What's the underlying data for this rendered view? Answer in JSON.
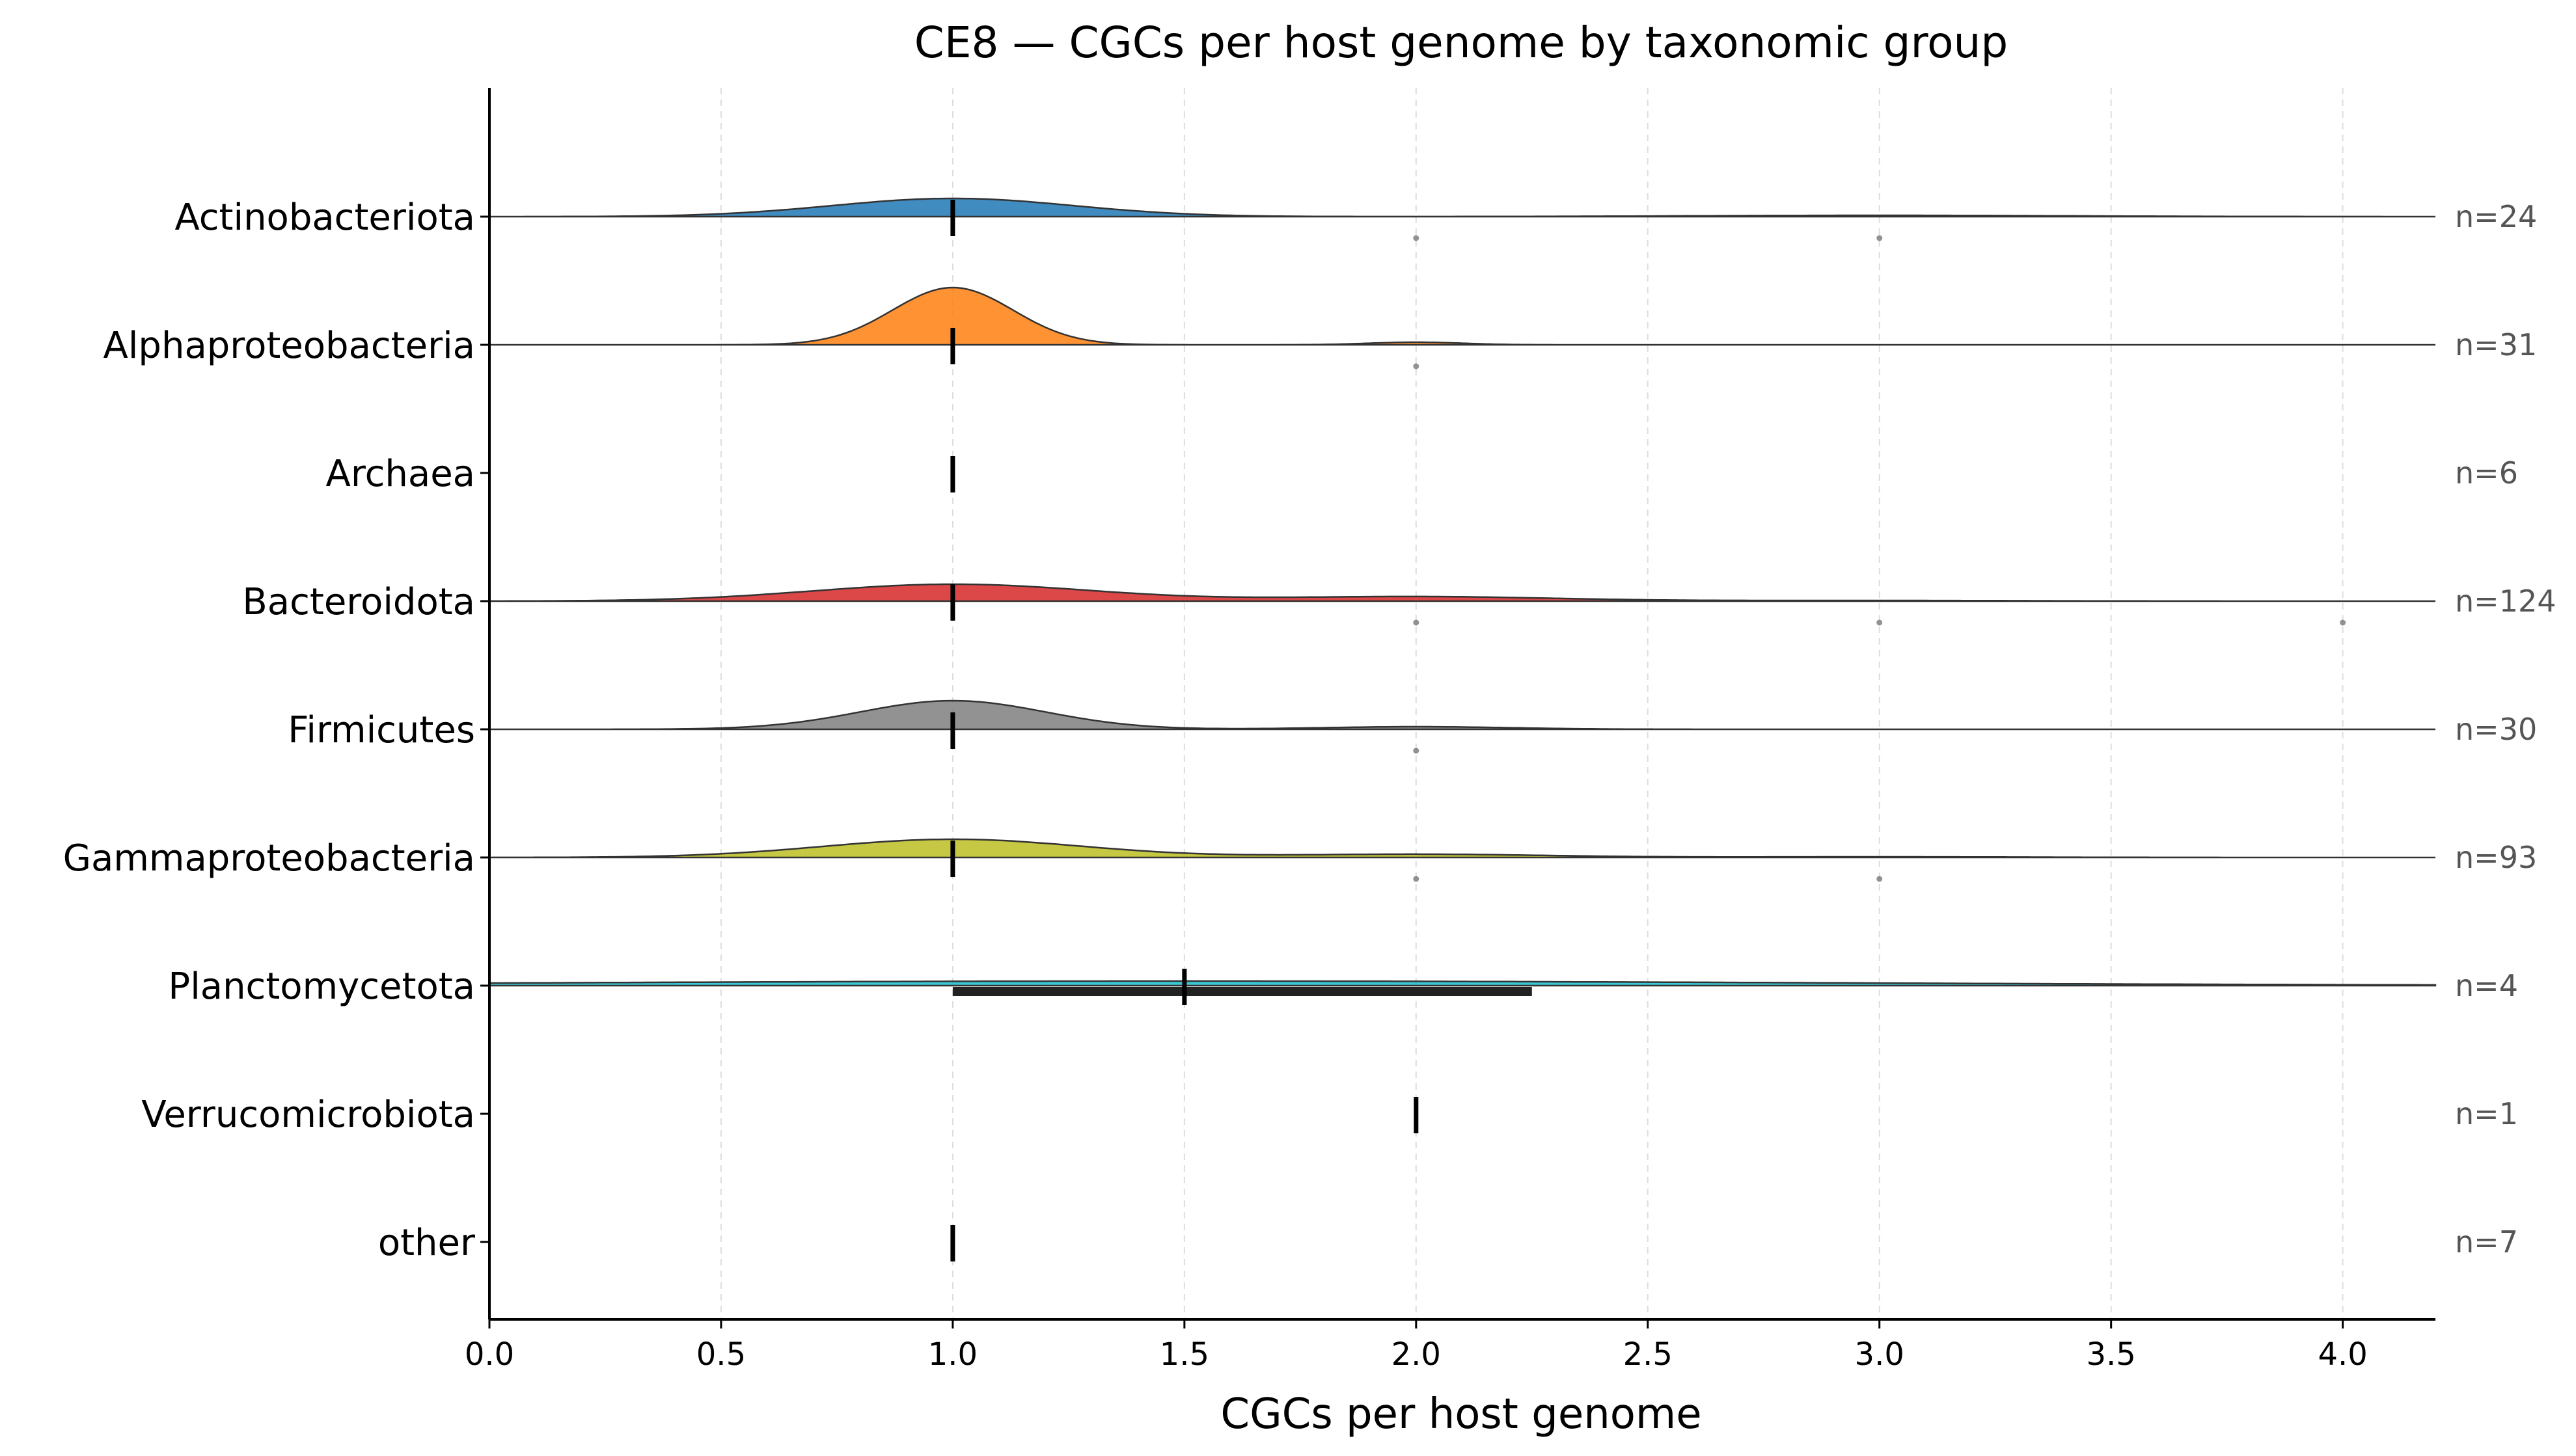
{
  "chart_data": {
    "type": "ridgeline",
    "title": "CE8 — CGCs per host genome by taxonomic group",
    "xlabel": "CGCs per host genome",
    "xlim": [
      0.0,
      4.2
    ],
    "xticks": [
      "0.0",
      "0.5",
      "1.0",
      "1.5",
      "2.0",
      "2.5",
      "3.0",
      "3.5",
      "4.0"
    ],
    "grid": "vertical dashed",
    "groups": [
      {
        "name": "Actinobacteriota",
        "n_label": "n=24",
        "color": "#1f77b4",
        "peaks": [
          {
            "x": 1.0,
            "h": 0.14,
            "w": 0.26
          },
          {
            "x": 3.0,
            "h": 0.01,
            "w": 0.4
          }
        ],
        "median": 1.0,
        "iqr": [
          1.0,
          1.0
        ],
        "outliers": [
          2.0,
          3.0
        ]
      },
      {
        "name": "Alphaproteobacteria",
        "n_label": "n=31",
        "color": "#ff7f0e",
        "peaks": [
          {
            "x": 1.0,
            "h": 0.44,
            "w": 0.13
          },
          {
            "x": 2.0,
            "h": 0.02,
            "w": 0.1
          }
        ],
        "median": 1.0,
        "iqr": [
          1.0,
          1.0
        ],
        "outliers": [
          2.0
        ]
      },
      {
        "name": "Archaea",
        "n_label": "n=6",
        "color": "#2ca02c",
        "peaks": [],
        "median": 1.0,
        "iqr": [
          1.0,
          1.0
        ],
        "outliers": []
      },
      {
        "name": "Bacteroidota",
        "n_label": "n=124",
        "color": "#d62728",
        "peaks": [
          {
            "x": 1.0,
            "h": 0.13,
            "w": 0.3
          },
          {
            "x": 2.0,
            "h": 0.035,
            "w": 0.3
          },
          {
            "x": 3.0,
            "h": 0.005,
            "w": 0.3
          }
        ],
        "median": 1.0,
        "iqr": [
          1.0,
          1.0
        ],
        "outliers": [
          2.0,
          3.0,
          4.0
        ]
      },
      {
        "name": "Firmicutes",
        "n_label": "n=30",
        "color": "#7f7f7f",
        "peaks": [
          {
            "x": 1.0,
            "h": 0.22,
            "w": 0.2
          },
          {
            "x": 2.0,
            "h": 0.02,
            "w": 0.2
          }
        ],
        "median": 1.0,
        "iqr": [
          1.0,
          1.0
        ],
        "outliers": [
          2.0
        ]
      },
      {
        "name": "Gammaproteobacteria",
        "n_label": "n=93",
        "color": "#bcbd22",
        "peaks": [
          {
            "x": 1.0,
            "h": 0.14,
            "w": 0.28
          },
          {
            "x": 2.0,
            "h": 0.025,
            "w": 0.28
          },
          {
            "x": 3.0,
            "h": 0.005,
            "w": 0.3
          }
        ],
        "median": 1.0,
        "iqr": [
          1.0,
          1.0
        ],
        "outliers": [
          2.0,
          3.0
        ]
      },
      {
        "name": "Planctomycetota",
        "n_label": "n=4",
        "color": "#17becf",
        "peaks": [
          {
            "x": 1.5,
            "h": 0.035,
            "w": 1.4
          }
        ],
        "median": 1.5,
        "iqr": [
          1.0,
          2.25
        ],
        "outliers": []
      },
      {
        "name": "Verrucomicrobiota",
        "n_label": "n=1",
        "color": "#1f77b4",
        "peaks": [],
        "median": 2.0,
        "iqr": [
          2.0,
          2.0
        ],
        "outliers": []
      },
      {
        "name": "other",
        "n_label": "n=7",
        "color": "#ff7f0e",
        "peaks": [],
        "median": 1.0,
        "iqr": [
          1.0,
          1.0
        ],
        "outliers": []
      }
    ]
  }
}
